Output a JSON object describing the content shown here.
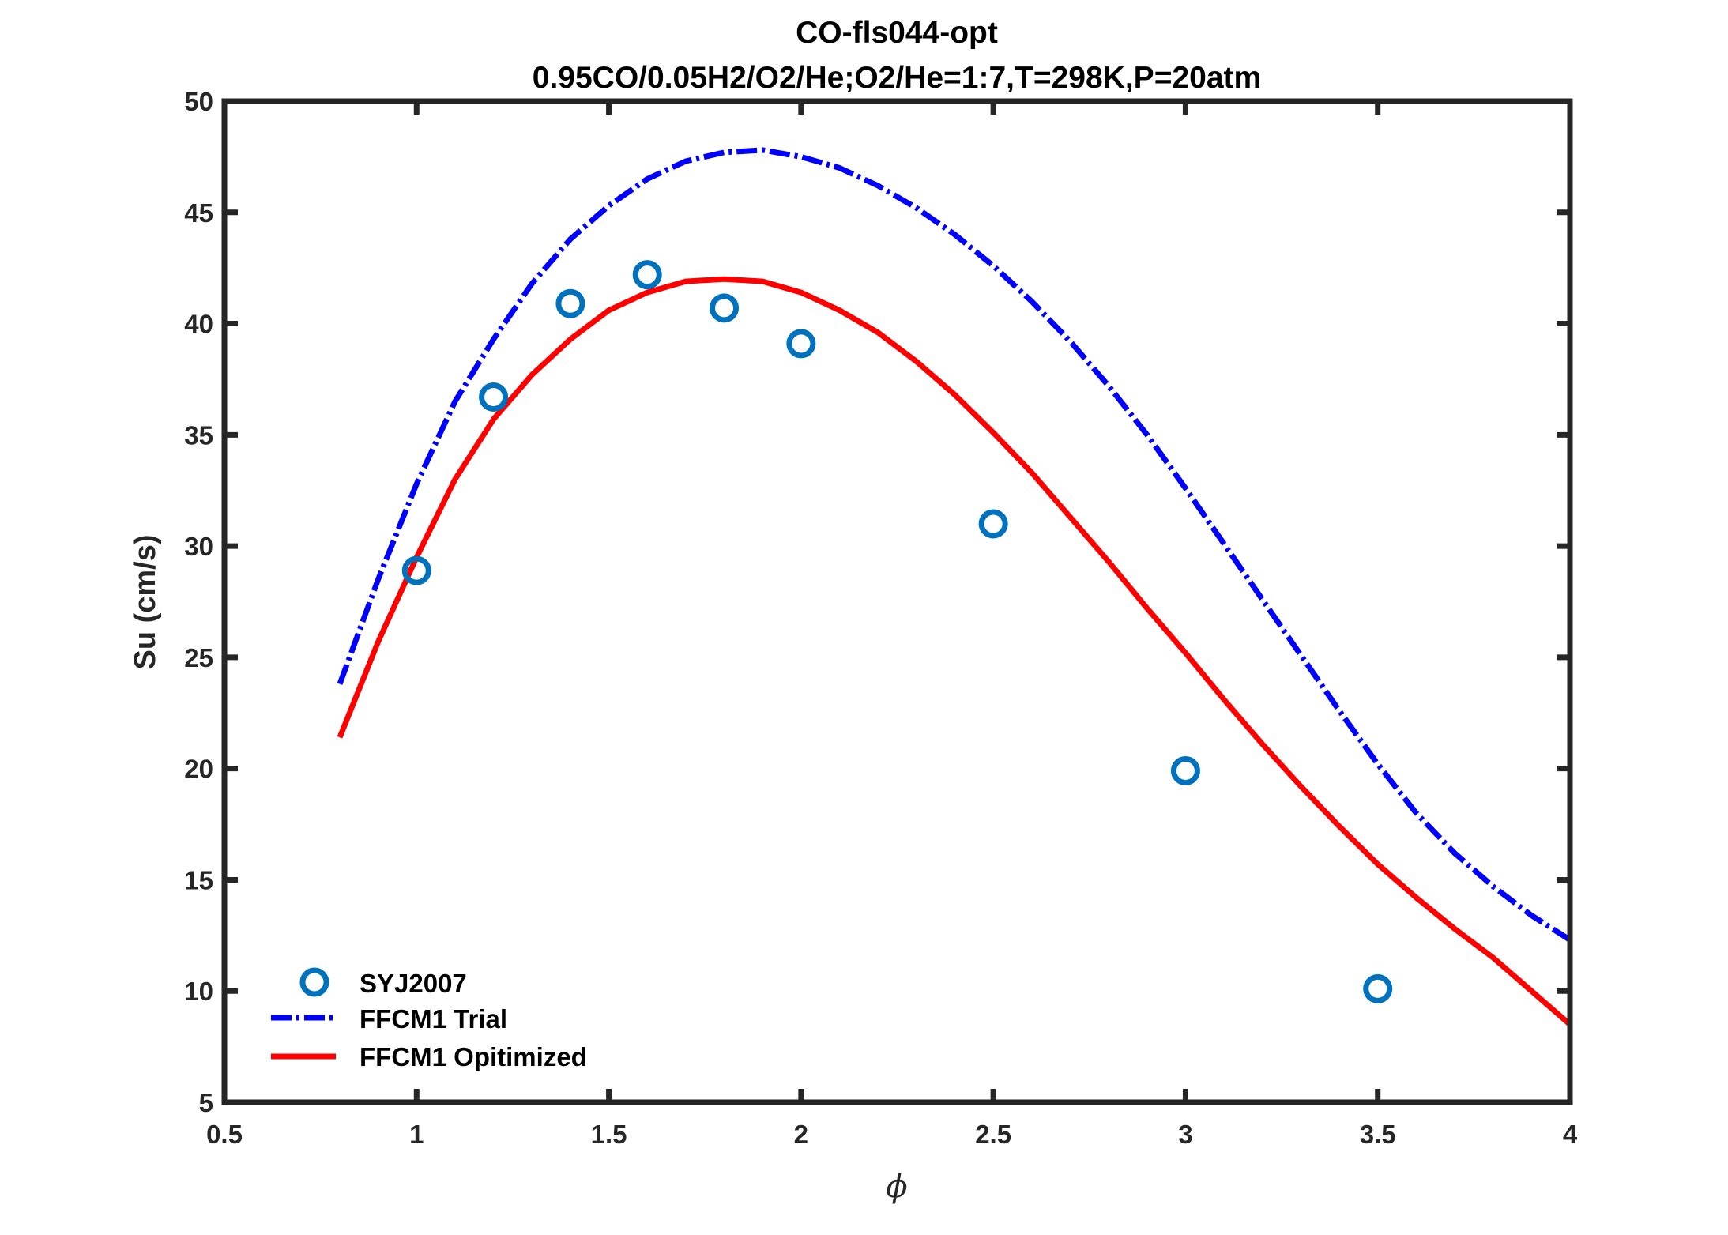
{
  "chart_data": {
    "type": "line",
    "title": "CO-fls044-opt",
    "subtitle": "0.95CO/0.05H2/O2/He;O2/He=1:7,T=298K,P=20atm",
    "xlabel": "ϕ",
    "ylabel": "Su (cm/s)",
    "xlim": [
      0.5,
      4
    ],
    "ylim": [
      5,
      50
    ],
    "xticks": [
      0.5,
      1,
      1.5,
      2,
      2.5,
      3,
      3.5,
      4
    ],
    "xtick_labels": [
      "0.5",
      "1",
      "1.5",
      "2",
      "2.5",
      "3",
      "3.5",
      "4"
    ],
    "yticks": [
      5,
      10,
      15,
      20,
      25,
      30,
      35,
      40,
      45,
      50
    ],
    "ytick_labels": [
      "5",
      "10",
      "15",
      "20",
      "25",
      "30",
      "35",
      "40",
      "45",
      "50"
    ],
    "grid": false,
    "legend_position": "bottom-left",
    "series": [
      {
        "name": "SYJ2007",
        "kind": "scatter",
        "marker": "circle",
        "color": "#0072BD",
        "x": [
          1.0,
          1.2,
          1.4,
          1.6,
          1.8,
          2.0,
          2.5,
          3.0,
          3.5
        ],
        "y": [
          28.9,
          36.7,
          40.9,
          42.2,
          40.7,
          39.1,
          31.0,
          19.9,
          10.1
        ]
      },
      {
        "name": "FFCM1 Trial",
        "kind": "line",
        "style": "dash-dot",
        "color": "#0000FF",
        "x": [
          0.8,
          0.9,
          1.0,
          1.1,
          1.2,
          1.3,
          1.4,
          1.5,
          1.6,
          1.7,
          1.8,
          1.9,
          2.0,
          2.1,
          2.2,
          2.3,
          2.4,
          2.5,
          2.6,
          2.7,
          2.8,
          2.9,
          3.0,
          3.1,
          3.2,
          3.3,
          3.4,
          3.5,
          3.6,
          3.7,
          3.8,
          3.9,
          4.0
        ],
        "y": [
          23.8,
          28.5,
          32.8,
          36.5,
          39.3,
          41.8,
          43.8,
          45.3,
          46.5,
          47.3,
          47.7,
          47.8,
          47.5,
          47.0,
          46.2,
          45.2,
          44.0,
          42.6,
          41.0,
          39.2,
          37.2,
          35.0,
          32.6,
          30.1,
          27.6,
          25.1,
          22.6,
          20.2,
          18.0,
          16.2,
          14.7,
          13.4,
          12.3
        ]
      },
      {
        "name": "FFCM1 Opitimized",
        "kind": "line",
        "style": "solid",
        "color": "#FF0000",
        "x": [
          0.8,
          0.9,
          1.0,
          1.1,
          1.2,
          1.3,
          1.4,
          1.5,
          1.6,
          1.7,
          1.8,
          1.9,
          2.0,
          2.1,
          2.2,
          2.3,
          2.4,
          2.5,
          2.6,
          2.7,
          2.8,
          2.9,
          3.0,
          3.1,
          3.2,
          3.3,
          3.4,
          3.5,
          3.6,
          3.7,
          3.8,
          3.9,
          4.0
        ],
        "y": [
          21.4,
          25.7,
          29.5,
          33.0,
          35.7,
          37.7,
          39.3,
          40.6,
          41.4,
          41.9,
          42.0,
          41.9,
          41.4,
          40.6,
          39.6,
          38.3,
          36.8,
          35.1,
          33.3,
          31.3,
          29.3,
          27.2,
          25.2,
          23.1,
          21.1,
          19.2,
          17.4,
          15.7,
          14.2,
          12.8,
          11.5,
          10.0,
          8.5
        ]
      }
    ]
  }
}
